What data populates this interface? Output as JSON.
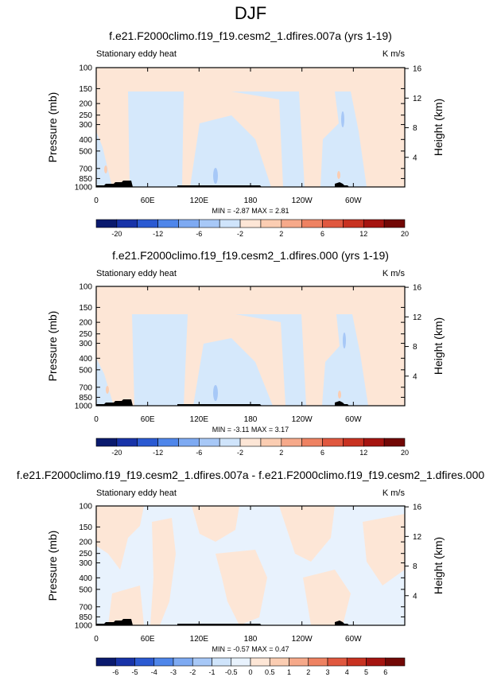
{
  "page": {
    "season_title": "DJF"
  },
  "chart_data": [
    {
      "type": "heatmap",
      "title": "f.e21.F2000climo.f19_f19.cesm2_1.dfires.007a (yrs 1-19)",
      "left_label": "Stationary eddy heat",
      "right_label": "K m/s",
      "ylabel": "Pressure (mb)",
      "ylabel_right": "Height (km)",
      "x_ticks": [
        "0",
        "60E",
        "120E",
        "180",
        "120W",
        "60W"
      ],
      "y_ticks": [
        "100",
        "150",
        "200",
        "250",
        "300",
        "400",
        "500",
        "700",
        "850",
        "1000"
      ],
      "height_ticks": [
        "4",
        "8",
        "12",
        "16"
      ],
      "min_max": "MIN = -2.87  MAX =  2.81",
      "colorbar_labels": [
        "-20",
        "-12",
        "-6",
        "-2",
        "2",
        "6",
        "12",
        "20"
      ],
      "colorbar_colors": [
        "#0a1a6e",
        "#1833a8",
        "#2b5ad2",
        "#4f86ea",
        "#7eaaf2",
        "#a7c8f7",
        "#cfe4fb",
        "#fde6d6",
        "#fbcdb2",
        "#f6a98a",
        "#ee8262",
        "#e0583f",
        "#c83221",
        "#a51410",
        "#720806"
      ]
    },
    {
      "type": "heatmap",
      "title": "f.e21.F2000climo.f19_f19.cesm2_1.dfires.000 (yrs 1-19)",
      "left_label": "Stationary eddy heat",
      "right_label": "K m/s",
      "ylabel": "Pressure (mb)",
      "ylabel_right": "Height (km)",
      "x_ticks": [
        "0",
        "60E",
        "120E",
        "180",
        "120W",
        "60W"
      ],
      "y_ticks": [
        "100",
        "150",
        "200",
        "250",
        "300",
        "400",
        "500",
        "700",
        "850",
        "1000"
      ],
      "height_ticks": [
        "4",
        "8",
        "12",
        "16"
      ],
      "min_max": "MIN = -3.11  MAX =  3.17",
      "colorbar_labels": [
        "-20",
        "-12",
        "-6",
        "-2",
        "2",
        "6",
        "12",
        "20"
      ],
      "colorbar_colors": [
        "#0a1a6e",
        "#1833a8",
        "#2b5ad2",
        "#4f86ea",
        "#7eaaf2",
        "#a7c8f7",
        "#cfe4fb",
        "#fde6d6",
        "#fbcdb2",
        "#f6a98a",
        "#ee8262",
        "#e0583f",
        "#c83221",
        "#a51410",
        "#720806"
      ]
    },
    {
      "type": "heatmap",
      "title": "f.e21.F2000climo.f19_f19.cesm2_1.dfires.007a - f.e21.F2000climo.f19_f19.cesm2_1.dfires.000",
      "left_label": "Stationary eddy heat",
      "right_label": "K m/s",
      "ylabel": "Pressure (mb)",
      "ylabel_right": "Height (km)",
      "x_ticks": [
        "0",
        "60E",
        "120E",
        "180",
        "120W",
        "60W"
      ],
      "y_ticks": [
        "100",
        "150",
        "200",
        "250",
        "300",
        "400",
        "500",
        "700",
        "850",
        "1000"
      ],
      "height_ticks": [
        "4",
        "8",
        "12",
        "16"
      ],
      "min_max": "MIN = -0.57  MAX =  0.47",
      "colorbar_labels": [
        "-6",
        "-5",
        "-4",
        "-3",
        "-2",
        "-1",
        "-0.5",
        "0",
        "0.5",
        "1",
        "2",
        "3",
        "4",
        "5",
        "6"
      ],
      "colorbar_colors": [
        "#0a1a6e",
        "#1833a8",
        "#2b5ad2",
        "#4f86ea",
        "#7eaaf2",
        "#a7c8f7",
        "#cfe4fb",
        "#e8f2fd",
        "#fde6d6",
        "#fbcdb2",
        "#f6a98a",
        "#ee8262",
        "#e0583f",
        "#c83221",
        "#a51410",
        "#720806"
      ]
    }
  ],
  "colors": {
    "positive_fill": "#fde6d6",
    "negative_fill": "#d5e8fb",
    "topography": "#000000"
  }
}
